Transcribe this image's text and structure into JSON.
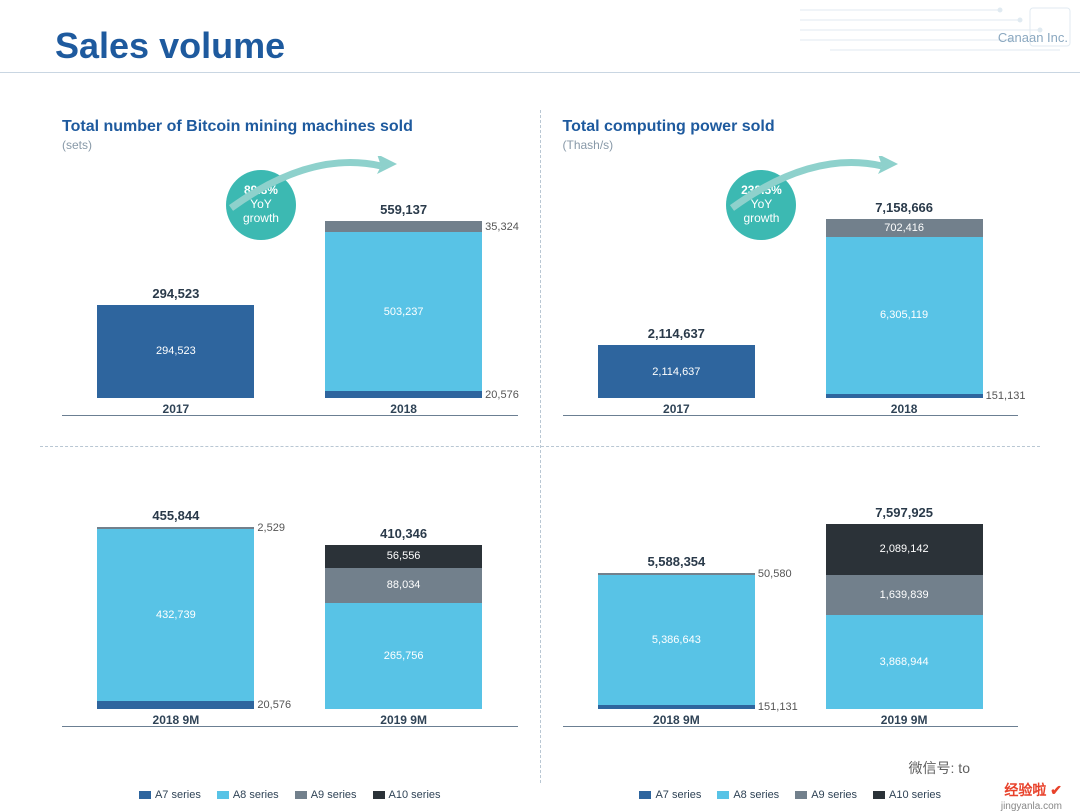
{
  "page": {
    "title": "Sales volume",
    "company": "Canaan Inc."
  },
  "colors": {
    "a7": "#2e659e",
    "a8": "#58c3e6",
    "a9": "#72808c",
    "a10": "#2b3238",
    "badge": "#3cb9b2",
    "title": "#1e5a9e",
    "axis": "#6b7f92",
    "arrow": "#8ed1cc"
  },
  "legend": {
    "items": [
      "A7 series",
      "A8 series",
      "A9 series",
      "A10 series"
    ]
  },
  "charts": {
    "top_left": {
      "title": "Total number of Bitcoin mining machines sold",
      "unit": "(sets)",
      "badge": {
        "pct": "89.8%",
        "line2": "YoY",
        "line3": "growth"
      },
      "max": 600000,
      "bars": [
        {
          "x": "2017",
          "total": "294,523",
          "segments": [
            {
              "series": "a7",
              "value": 294523,
              "label": "294,523"
            }
          ]
        },
        {
          "x": "2018",
          "total": "559,137",
          "segments": [
            {
              "series": "a7",
              "value": 20576,
              "label": "20,576"
            },
            {
              "series": "a8",
              "value": 503237,
              "label": "503,237"
            },
            {
              "series": "a9",
              "value": 35324,
              "label": "35,324"
            }
          ]
        }
      ]
    },
    "top_right": {
      "title": "Total computing power sold",
      "unit": "(Thash/s)",
      "badge": {
        "pct": "238.5%",
        "line2": "YoY",
        "line3": "growth"
      },
      "max": 7600000,
      "bars": [
        {
          "x": "2017",
          "total": "2,114,637",
          "segments": [
            {
              "series": "a7",
              "value": 2114637,
              "label": "2,114,637"
            }
          ]
        },
        {
          "x": "2018",
          "total": "7,158,666",
          "segments": [
            {
              "series": "a7",
              "value": 151131,
              "label": "151,131"
            },
            {
              "series": "a8",
              "value": 6305119,
              "label": "6,305,119"
            },
            {
              "series": "a9",
              "value": 702416,
              "label": "702,416"
            }
          ]
        }
      ]
    },
    "bottom_left": {
      "title": "",
      "unit": "",
      "max": 500000,
      "bars": [
        {
          "x": "2018 9M",
          "total": "455,844",
          "segments": [
            {
              "series": "a7",
              "value": 20576,
              "label": "20,576"
            },
            {
              "series": "a8",
              "value": 432739,
              "label": "432,739"
            },
            {
              "series": "a9",
              "value": 2529,
              "label": "2,529",
              "external": true
            }
          ]
        },
        {
          "x": "2019 9M",
          "total": "410,346",
          "segments": [
            {
              "series": "a8",
              "value": 265756,
              "label": "265,756"
            },
            {
              "series": "a9",
              "value": 88034,
              "label": "88,034"
            },
            {
              "series": "a10",
              "value": 56556,
              "label": "56,556"
            }
          ]
        }
      ],
      "show_legend": true
    },
    "bottom_right": {
      "title": "",
      "unit": "",
      "max": 8200000,
      "bars": [
        {
          "x": "2018 9M",
          "total": "5,588,354",
          "segments": [
            {
              "series": "a7",
              "value": 151131,
              "label": "151,131"
            },
            {
              "series": "a8",
              "value": 5386643,
              "label": "5,386,643"
            },
            {
              "series": "a9",
              "value": 50580,
              "label": "50,580",
              "external": true
            }
          ]
        },
        {
          "x": "2019 9M",
          "total": "7,597,925",
          "segments": [
            {
              "series": "a8",
              "value": 3868944,
              "label": "3,868,944"
            },
            {
              "series": "a9",
              "value": 1639839,
              "label": "1,639,839"
            },
            {
              "series": "a10",
              "value": 2089142,
              "label": "2,089,142"
            }
          ]
        }
      ],
      "show_legend": true
    }
  },
  "watermarks": {
    "wechat": "微信号: to",
    "brand": "经验啦 ✔",
    "site": "jingyanla.com"
  }
}
